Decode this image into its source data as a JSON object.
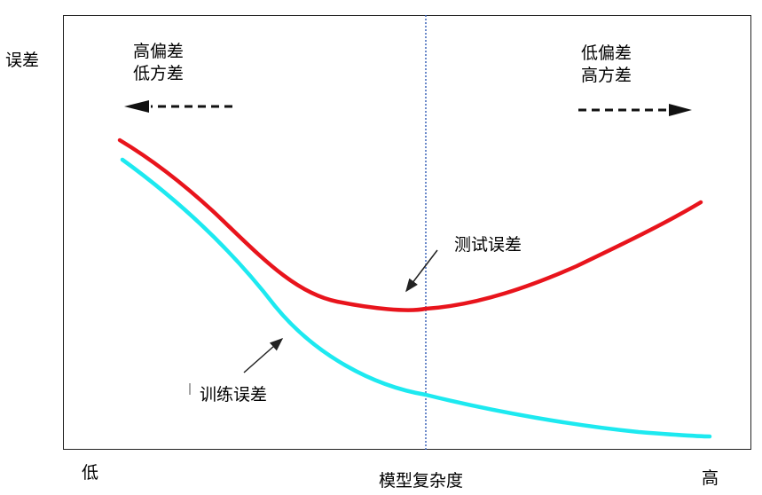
{
  "y_axis_label": "误差",
  "x_axis_label": "模型复杂度",
  "x_low_label": "低",
  "x_high_label": "高",
  "left_region": {
    "line1": "高偏差",
    "line2": "低方差"
  },
  "right_region": {
    "line1": "低偏差",
    "line2": "高方差"
  },
  "test_error_label": "测试误差",
  "train_error_label": "训练误差",
  "colors": {
    "test_error": "#e8141c",
    "train_error": "#1de9f0",
    "optimal_line": "#3b63b8",
    "frame": "#222222"
  },
  "icons": {
    "left_arrow": "dashed-arrow-left-icon",
    "right_arrow": "dashed-arrow-right-icon"
  }
}
